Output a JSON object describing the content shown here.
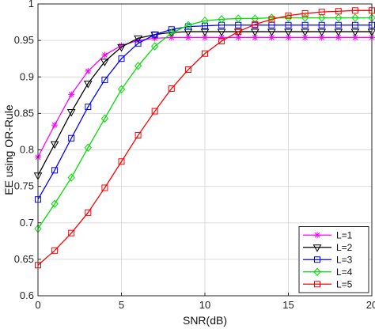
{
  "chart_data": {
    "type": "line",
    "title": "",
    "xlabel": "SNR(dB)",
    "ylabel": "EE using OR-Rule",
    "xlim": [
      0,
      20
    ],
    "ylim": [
      0.6,
      1
    ],
    "xticks": [
      "0",
      "5",
      "10",
      "15",
      "20"
    ],
    "yticks": [
      "0.6",
      "0.65",
      "0.7",
      "0.75",
      "0.8",
      "0.85",
      "0.9",
      "0.95",
      "1"
    ],
    "grid": true,
    "legend_position": "bottom-right",
    "x": [
      0,
      1,
      2,
      3,
      4,
      5,
      6,
      7,
      8,
      9,
      10,
      11,
      12,
      13,
      14,
      15,
      16,
      17,
      18,
      19,
      20
    ],
    "series": [
      {
        "name": "L=1",
        "color": "#ff00ff",
        "marker": "asterisk",
        "values": [
          0.79,
          0.834,
          0.876,
          0.908,
          0.93,
          0.943,
          0.95,
          0.953,
          0.954,
          0.954,
          0.954,
          0.954,
          0.954,
          0.954,
          0.954,
          0.954,
          0.954,
          0.954,
          0.954,
          0.954,
          0.954
        ]
      },
      {
        "name": "L=2",
        "color": "#000000",
        "marker": "triangle-down",
        "values": [
          0.765,
          0.808,
          0.852,
          0.891,
          0.921,
          0.941,
          0.953,
          0.958,
          0.961,
          0.962,
          0.962,
          0.962,
          0.962,
          0.962,
          0.962,
          0.962,
          0.962,
          0.962,
          0.962,
          0.962,
          0.962
        ]
      },
      {
        "name": "L=3",
        "color": "#0000ff",
        "marker": "square",
        "values": [
          0.732,
          0.772,
          0.816,
          0.859,
          0.896,
          0.925,
          0.946,
          0.958,
          0.965,
          0.969,
          0.97,
          0.971,
          0.971,
          0.971,
          0.971,
          0.971,
          0.971,
          0.971,
          0.971,
          0.971,
          0.971
        ]
      },
      {
        "name": "L=4",
        "color": "#00dd00",
        "marker": "diamond",
        "values": [
          0.692,
          0.726,
          0.762,
          0.803,
          0.843,
          0.883,
          0.915,
          0.942,
          0.96,
          0.971,
          0.977,
          0.979,
          0.98,
          0.98,
          0.981,
          0.981,
          0.981,
          0.981,
          0.981,
          0.981,
          0.981
        ]
      },
      {
        "name": "L=5",
        "color": "#ff0000",
        "marker": "square",
        "values": [
          0.642,
          0.662,
          0.686,
          0.714,
          0.748,
          0.784,
          0.82,
          0.853,
          0.884,
          0.91,
          0.932,
          0.949,
          0.962,
          0.972,
          0.979,
          0.984,
          0.987,
          0.989,
          0.99,
          0.991,
          0.991
        ]
      }
    ]
  }
}
